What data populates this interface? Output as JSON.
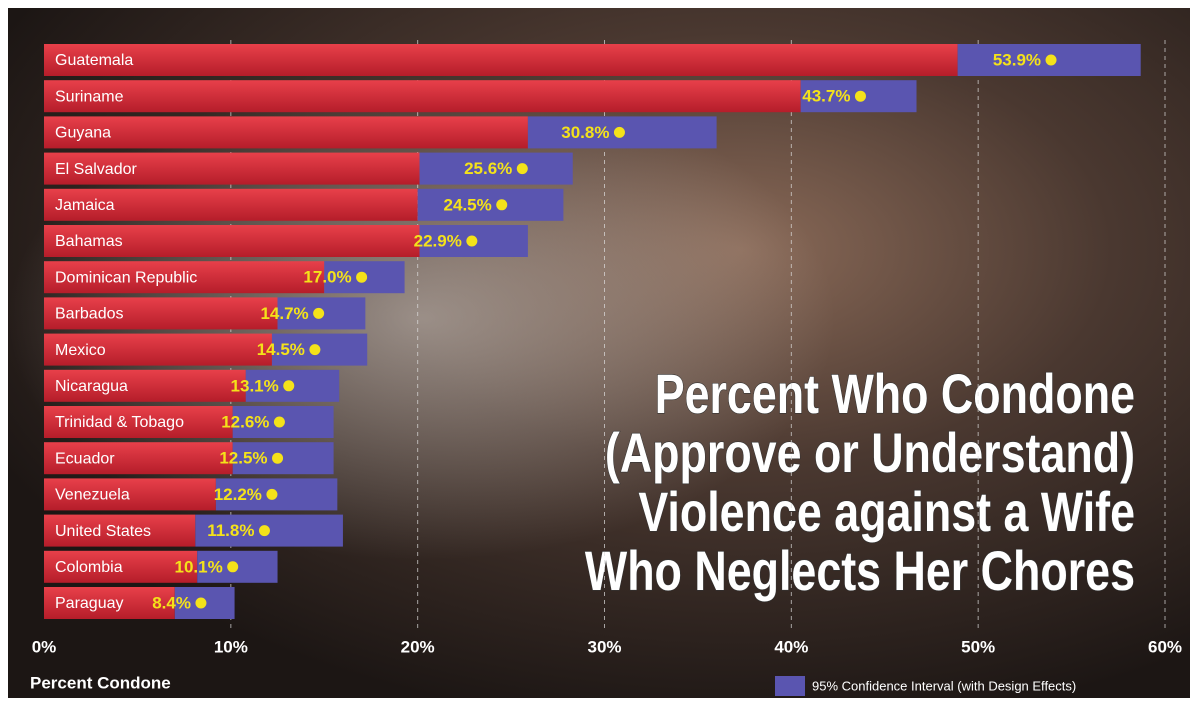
{
  "chart_data": {
    "type": "bar",
    "title_lines": [
      "Percent Who Condone",
      "(Approve or Understand)",
      "Violence against a Wife",
      "Who Neglects Her Chores"
    ],
    "categories": [
      "Guatemala",
      "Suriname",
      "Guyana",
      "El Salvador",
      "Jamaica",
      "Bahamas",
      "Dominican Republic",
      "Barbados",
      "Mexico",
      "Nicaragua",
      "Trinidad & Tobago",
      "Ecuador",
      "Venezuela",
      "United States",
      "Colombia",
      "Paraguay"
    ],
    "values": [
      53.9,
      43.7,
      30.8,
      25.6,
      24.5,
      22.9,
      17.0,
      14.7,
      14.5,
      13.1,
      12.6,
      12.5,
      12.2,
      11.8,
      10.1,
      8.4
    ],
    "value_labels": [
      "53.9%",
      "43.7%",
      "30.8%",
      "25.6%",
      "24.5%",
      "22.9%",
      "17.0%",
      "14.7%",
      "14.5%",
      "13.1%",
      "12.6%",
      "12.5%",
      "12.2%",
      "11.8%",
      "10.1%",
      "8.4%"
    ],
    "ci_lower": [
      48.9,
      40.5,
      25.9,
      20.1,
      20.0,
      20.1,
      15.0,
      12.5,
      12.2,
      10.8,
      10.1,
      10.1,
      9.2,
      8.1,
      8.2,
      7.0
    ],
    "ci_upper": [
      58.7,
      46.7,
      36.0,
      28.3,
      27.8,
      25.9,
      19.3,
      17.2,
      17.3,
      15.8,
      15.5,
      15.5,
      15.7,
      16.0,
      12.5,
      10.2
    ],
    "color": "#d42a35",
    "ci_color": "#5a55b0",
    "dot_color": "#f4e21a",
    "xlim": [
      0,
      60
    ],
    "xticks": [
      {
        "value": 0,
        "label": "0%"
      },
      {
        "value": 10,
        "label": "10%"
      },
      {
        "value": 20,
        "label": "20%"
      },
      {
        "value": 30,
        "label": "30%"
      },
      {
        "value": 40,
        "label": "40%"
      },
      {
        "value": 50,
        "label": "50%"
      },
      {
        "value": 60,
        "label": "60%"
      }
    ],
    "xlabel": "Percent Condone",
    "legend": "95% Confidence Interval (with Design Effects)",
    "grid": true
  }
}
